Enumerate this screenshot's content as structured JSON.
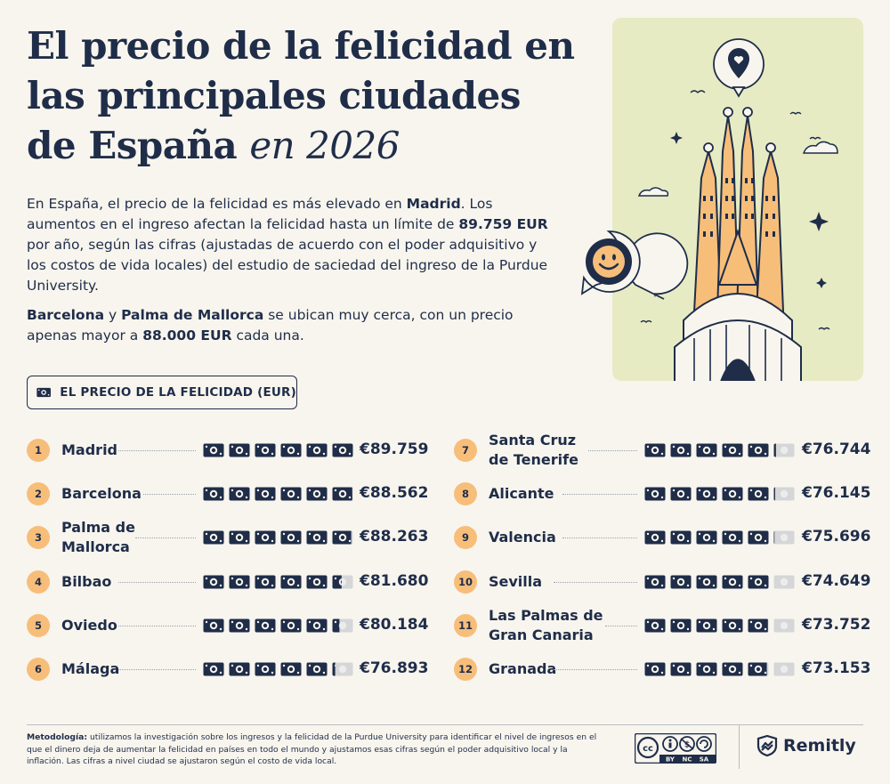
{
  "title": {
    "line1": "El precio de la felicidad en",
    "line2": "las principales ciudades",
    "line3": "de España",
    "line3_italic": "en 2026"
  },
  "intro": {
    "p1_a": "En España, el precio de la felicidad es más elevado en ",
    "p1_b": "Madrid",
    "p1_c": ". Los aumentos en el ingreso afectan la felicidad hasta un límite de ",
    "p1_d": "89.759 EUR",
    "p1_e": " por año, según las cifras (ajustadas de acuerdo con el poder adquisitivo y los costos de vida locales) del estudio de saciedad del ingreso de la Purdue University.",
    "p2_a": "Barcelona",
    "p2_b": " y ",
    "p2_c": "Palma de Mallorca",
    "p2_d": " se ubican muy cerca, con un precio apenas mayor a ",
    "p2_e": "88.000 EUR",
    "p2_f": " cada una."
  },
  "legend": {
    "label": "EL PRECIO DE LA FELICIDAD (EUR)"
  },
  "colors": {
    "navy": "#1f2d49",
    "badge": "#f7be7a",
    "bill_empty": "#d5d6d8",
    "illus_bg": "#e6ebc3",
    "tower": "#f7be7a"
  },
  "chart_data": {
    "type": "table",
    "unit": "EUR",
    "rows": [
      {
        "rank": "1",
        "city": "Madrid",
        "price": "€89.759",
        "value": 89759,
        "bills": 6.0
      },
      {
        "rank": "2",
        "city": "Barcelona",
        "price": "€88.562",
        "value": 88562,
        "bills": 5.95
      },
      {
        "rank": "3",
        "city": "Palma de\nMallorca",
        "price": "€88.263",
        "value": 88263,
        "bills": 5.9
      },
      {
        "rank": "4",
        "city": "Bilbao",
        "price": "€81.680",
        "value": 81680,
        "bills": 5.45
      },
      {
        "rank": "5",
        "city": "Oviedo",
        "price": "€80.184",
        "value": 80184,
        "bills": 5.35
      },
      {
        "rank": "6",
        "city": "Málaga",
        "price": "€76.893",
        "value": 76893,
        "bills": 5.15
      },
      {
        "rank": "7",
        "city": "Santa Cruz\nde Tenerife",
        "price": "€76.744",
        "value": 76744,
        "bills": 5.12
      },
      {
        "rank": "8",
        "city": "Alicante",
        "price": "€76.145",
        "value": 76145,
        "bills": 5.08
      },
      {
        "rank": "9",
        "city": "Valencia",
        "price": "€75.696",
        "value": 75696,
        "bills": 5.05
      },
      {
        "rank": "10",
        "city": "Sevilla",
        "price": "€74.649",
        "value": 74649,
        "bills": 5.0
      },
      {
        "rank": "11",
        "city": "Las Palmas de\nGran Canaria",
        "price": "€73.752",
        "value": 73752,
        "bills": 4.95
      },
      {
        "rank": "12",
        "city": "Granada",
        "price": "€73.153",
        "value": 73153,
        "bills": 4.9
      }
    ]
  },
  "footer": {
    "method_label": "Metodología:",
    "method_text": " utilizamos la investigación sobre los ingresos y la felicidad de la Purdue University para identificar el nivel de ingresos en el que el dinero deja de aumentar la felicidad en países en todo el mundo y ajustamos esas cifras según el poder adquisitivo local y la inflación. Las cifras a nivel ciudad se ajustaron según el costo de vida local.",
    "cc_labels": [
      "BY",
      "NC",
      "SA"
    ],
    "cc_mark": "cc",
    "brand": "Remitly"
  }
}
